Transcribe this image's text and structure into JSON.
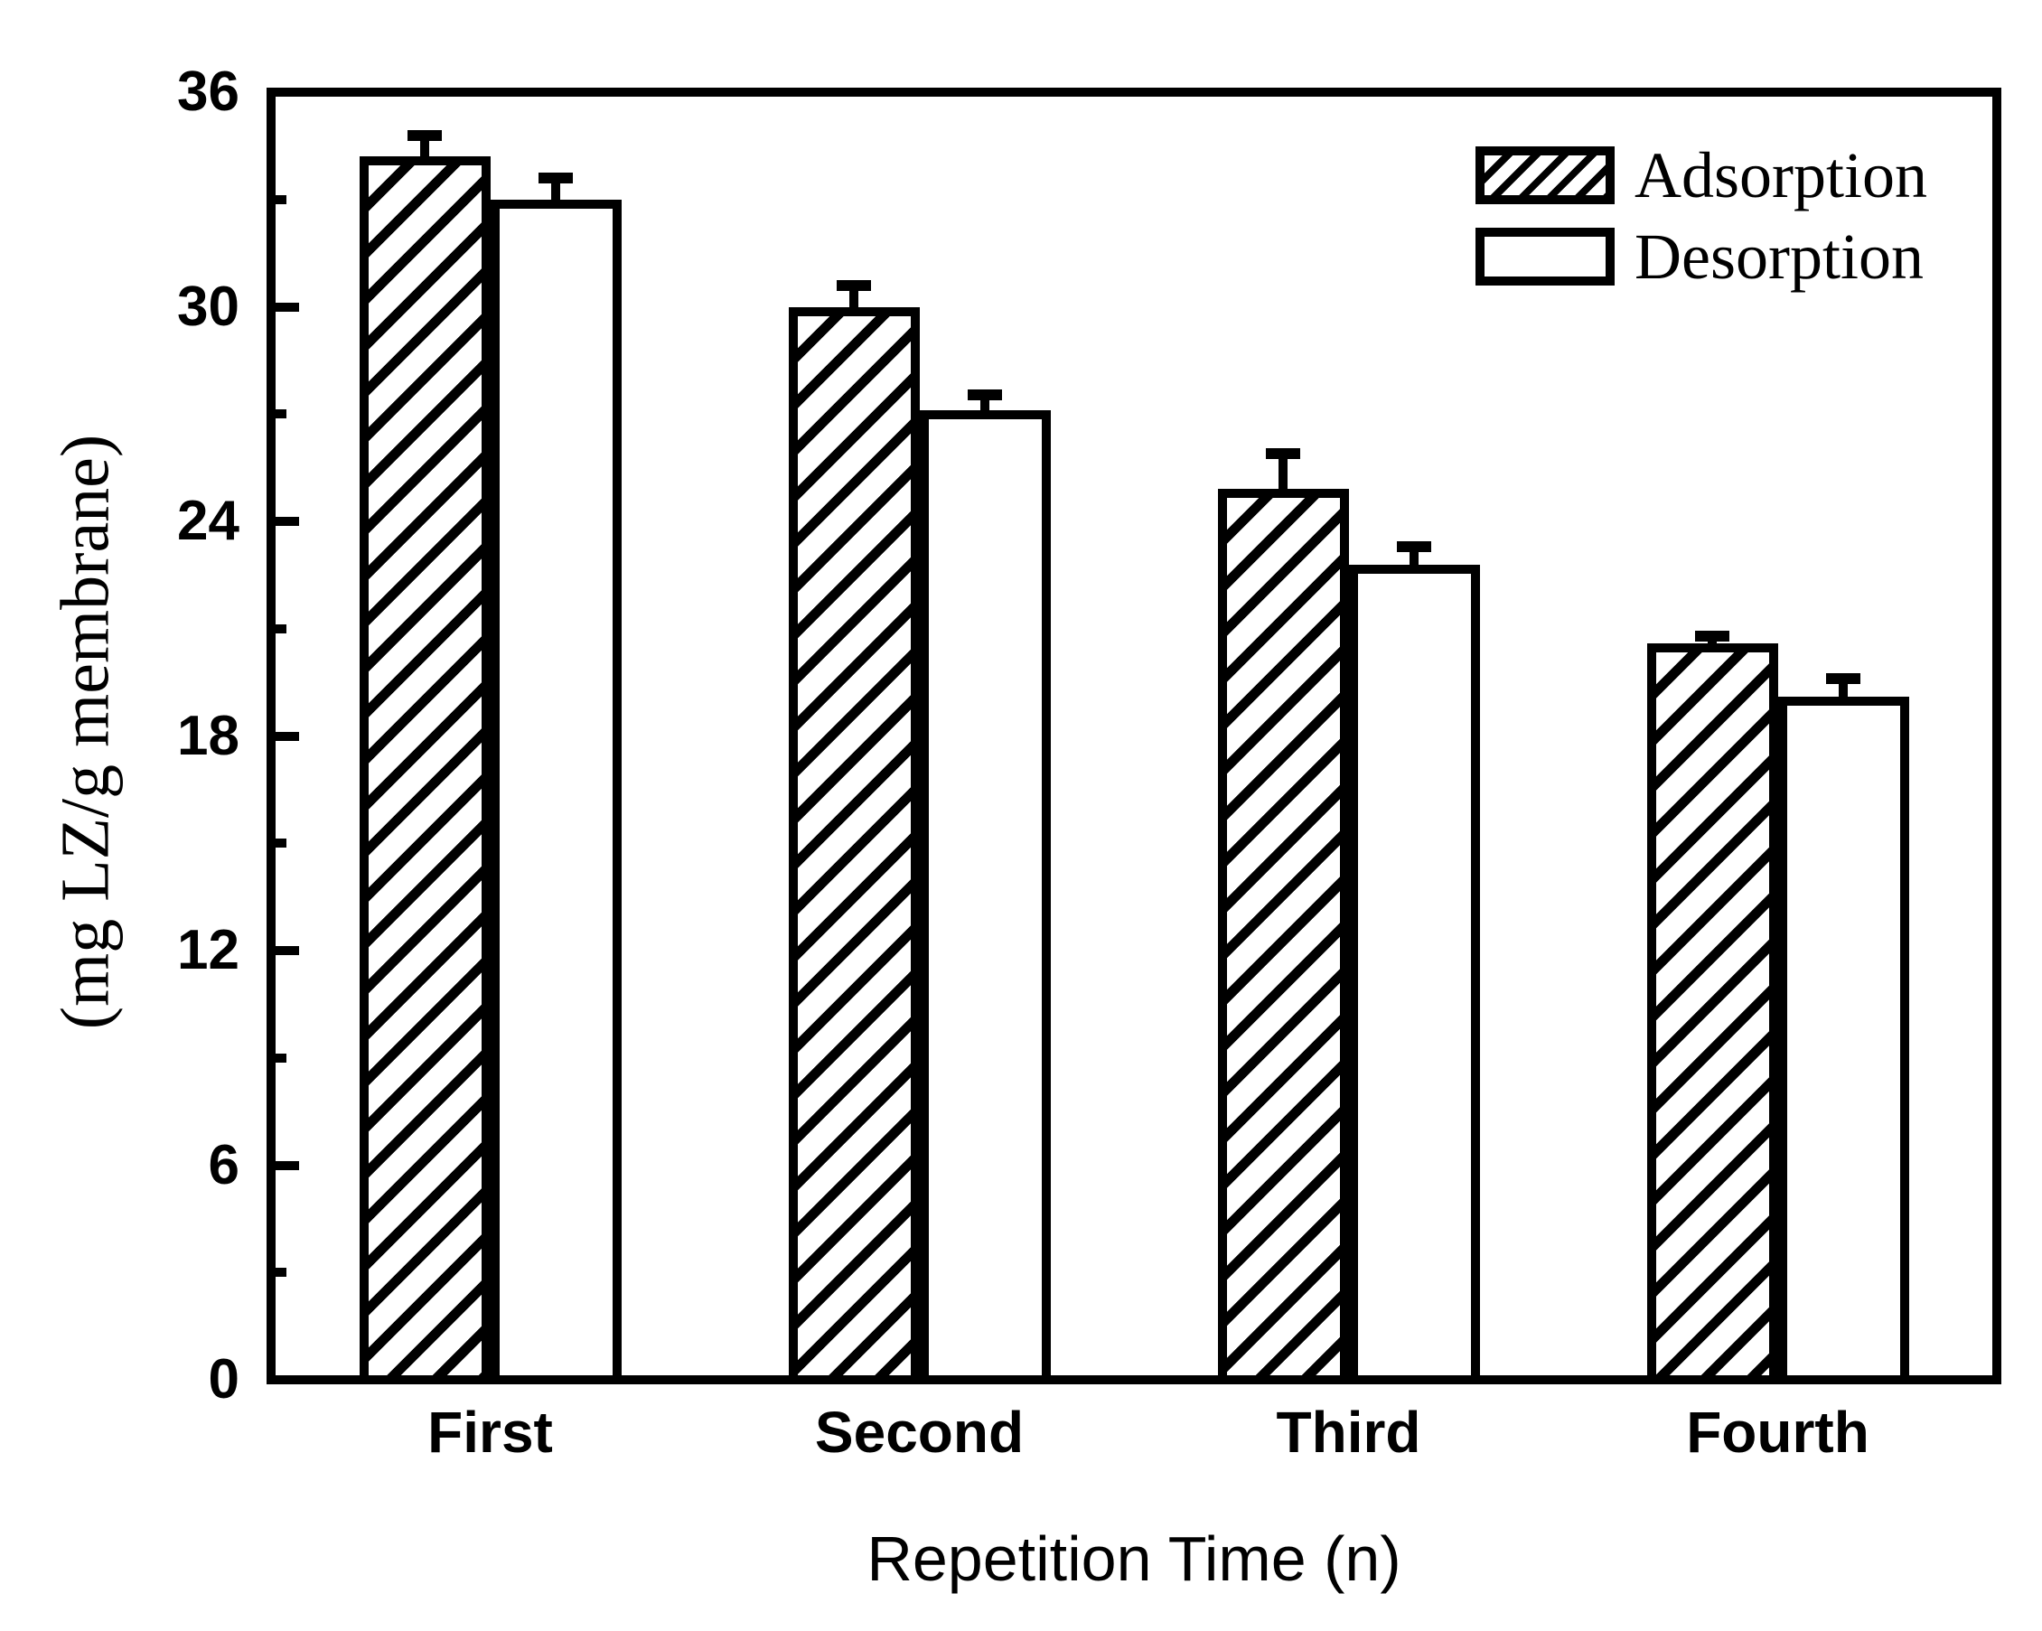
{
  "figure": {
    "background_color": "#ffffff",
    "ink_color": "#000000"
  },
  "chart_data": {
    "type": "bar",
    "title": "",
    "xlabel": "Repetition Time (n)",
    "ylabel": "(mg LZ/g membrane)",
    "categories": [
      "First",
      "Second",
      "Third",
      "Fourth"
    ],
    "series": [
      {
        "name": "Adsorption",
        "style": "hatched",
        "values": [
          34.2,
          30.0,
          24.9,
          20.6
        ],
        "errors": [
          0.6,
          0.6,
          1.0,
          0.2
        ]
      },
      {
        "name": "Desorption",
        "style": "open",
        "values": [
          33.0,
          27.1,
          22.8,
          19.1
        ],
        "errors": [
          0.6,
          0.45,
          0.5,
          0.5
        ]
      }
    ],
    "ylim": [
      0,
      36
    ],
    "y_major_ticks": [
      0,
      6,
      12,
      18,
      24,
      30,
      36
    ],
    "y_minor_step": 3,
    "grid": false,
    "error_bars": true,
    "legend_position": "top-right-inside"
  }
}
